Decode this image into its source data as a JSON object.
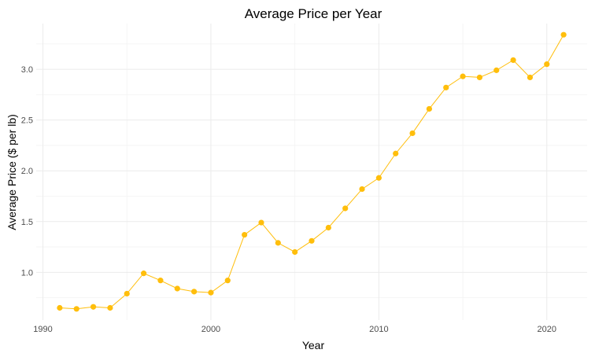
{
  "chart_data": {
    "type": "line",
    "title": "Average Price per Year",
    "xlabel": "Year",
    "ylabel": "Average Price ($ per lb)",
    "xlim": [
      1989.6,
      2022.4
    ],
    "ylim": [
      0.53,
      3.45
    ],
    "xticks": [
      1990,
      2000,
      2010,
      2020
    ],
    "yticks": [
      1.0,
      1.5,
      2.0,
      2.5,
      3.0
    ],
    "ytick_labels": [
      "1.0",
      "1.5",
      "2.0",
      "2.5",
      "3.0"
    ],
    "grid": true,
    "legend": "none",
    "color": "#FFBE0B",
    "x": [
      1991,
      1992,
      1993,
      1994,
      1995,
      1996,
      1997,
      1998,
      1999,
      2000,
      2001,
      2002,
      2003,
      2004,
      2005,
      2006,
      2007,
      2008,
      2009,
      2010,
      2011,
      2012,
      2013,
      2014,
      2015,
      2016,
      2017,
      2018,
      2019,
      2020,
      2021
    ],
    "y": [
      0.65,
      0.64,
      0.66,
      0.65,
      0.79,
      0.99,
      0.92,
      0.84,
      0.81,
      0.8,
      0.92,
      1.37,
      1.49,
      1.29,
      1.2,
      1.31,
      1.44,
      1.63,
      1.82,
      1.93,
      2.17,
      2.37,
      2.61,
      2.82,
      2.93,
      2.92,
      2.99,
      3.09,
      2.92,
      3.05,
      3.34
    ]
  }
}
